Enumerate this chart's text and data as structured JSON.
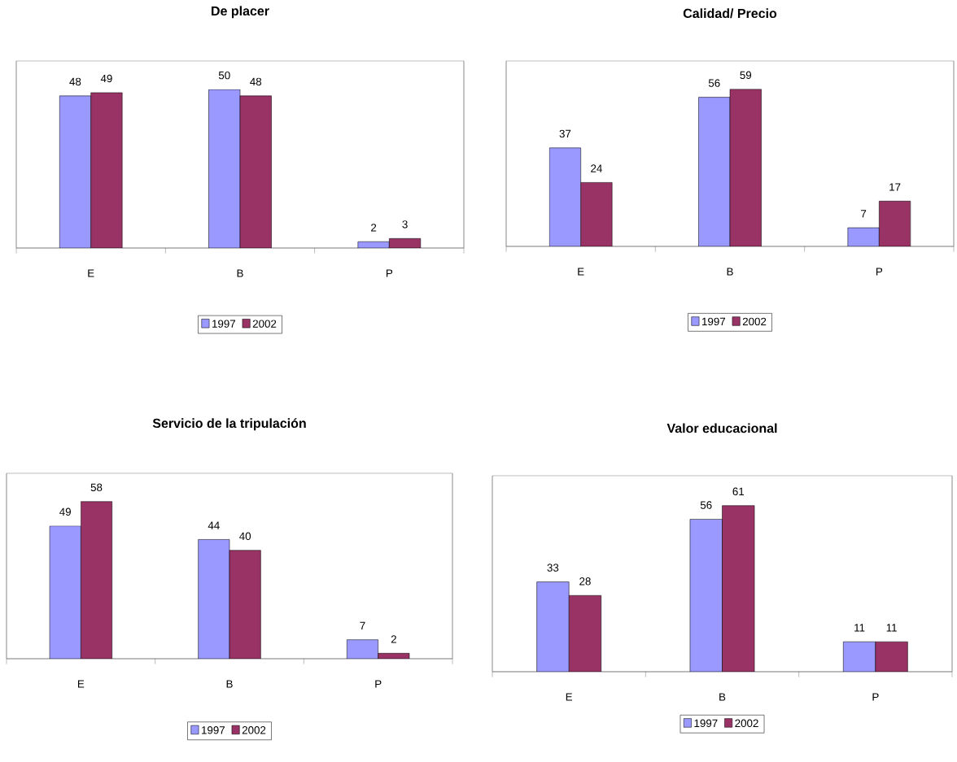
{
  "chart_data": [
    {
      "type": "bar",
      "title": "De placer",
      "categories": [
        "E",
        "B",
        "P"
      ],
      "series": [
        {
          "name": "1997",
          "color": "#9999ff",
          "values": [
            48,
            50,
            2
          ]
        },
        {
          "name": "2002",
          "color": "#993366",
          "values": [
            49,
            48,
            3
          ]
        }
      ],
      "data_labels": true,
      "legend": "bottom",
      "grid": false
    },
    {
      "type": "bar",
      "title": "Calidad/ Precio",
      "categories": [
        "E",
        "B",
        "P"
      ],
      "series": [
        {
          "name": "1997",
          "color": "#9999ff",
          "values": [
            37,
            56,
            7
          ]
        },
        {
          "name": "2002",
          "color": "#993366",
          "values": [
            24,
            59,
            17
          ]
        }
      ],
      "data_labels": true,
      "legend": "bottom",
      "grid": false
    },
    {
      "type": "bar",
      "title": "Servicio de la tripulación",
      "categories": [
        "E",
        "B",
        "P"
      ],
      "series": [
        {
          "name": "1997",
          "color": "#9999ff",
          "values": [
            49,
            44,
            7
          ]
        },
        {
          "name": "2002",
          "color": "#993366",
          "values": [
            58,
            40,
            2
          ]
        }
      ],
      "data_labels": true,
      "legend": "bottom",
      "grid": false
    },
    {
      "type": "bar",
      "title": "Valor educacional",
      "categories": [
        "E",
        "B",
        "P"
      ],
      "series": [
        {
          "name": "1997",
          "color": "#9999ff",
          "values": [
            33,
            56,
            11
          ]
        },
        {
          "name": "2002",
          "color": "#993366",
          "values": [
            28,
            61,
            11
          ]
        }
      ],
      "data_labels": true,
      "legend": "bottom",
      "grid": false
    }
  ]
}
